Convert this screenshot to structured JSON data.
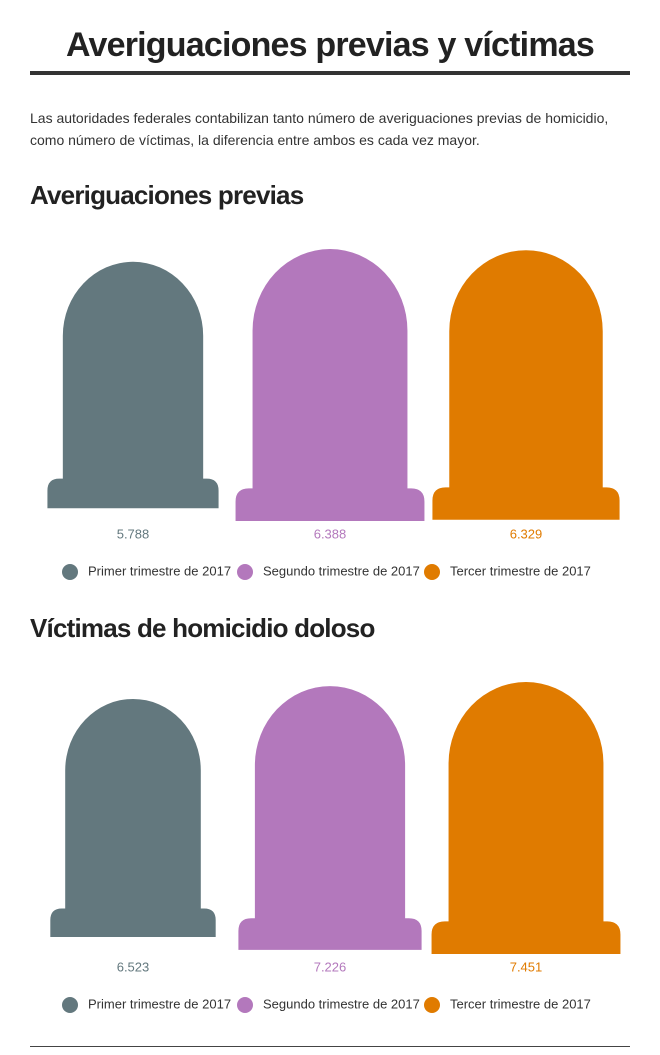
{
  "header": {
    "title": "Averiguaciones previas y víctimas",
    "intro": "Las autoridades federales contabilizan tanto número de averiguaciones previas de homicidio, como número de víctimas, la diferencia entre ambos es cada vez mayor."
  },
  "chart_data": [
    {
      "type": "pictograph",
      "title": "Averiguaciones previas",
      "categories": [
        "Primer trimestre de 2017",
        "Segundo trimestre de 2017",
        "Tercer trimestre de 2017"
      ],
      "values": [
        5788,
        6388,
        6329
      ],
      "value_labels": [
        "5.788",
        "6.388",
        "6.329"
      ],
      "colors": [
        "#63787e",
        "#b378bc",
        "#e07b00"
      ]
    },
    {
      "type": "pictograph",
      "title": "Víctimas de homicidio doloso",
      "categories": [
        "Primer trimestre de 2017",
        "Segundo trimestre de 2017",
        "Tercer trimestre de 2017"
      ],
      "values": [
        6523,
        7226,
        7451
      ],
      "value_labels": [
        "6.523",
        "7.226",
        "7.451"
      ],
      "colors": [
        "#63787e",
        "#b378bc",
        "#e07b00"
      ]
    }
  ]
}
